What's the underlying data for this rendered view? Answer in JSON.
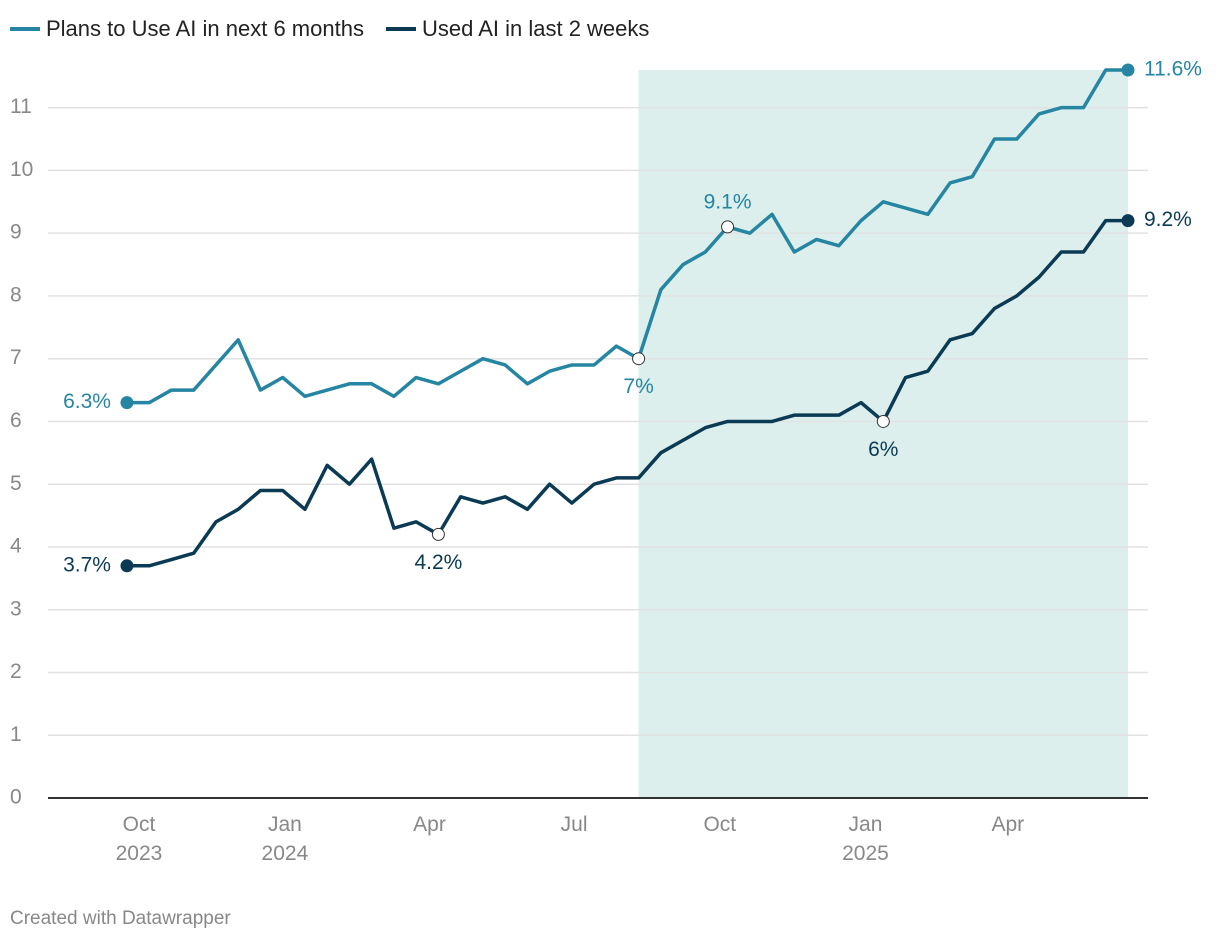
{
  "chart_data": {
    "type": "line",
    "x": [
      0,
      1,
      2,
      3,
      4,
      5,
      6,
      7,
      8,
      9,
      10,
      11,
      12,
      13,
      14,
      15,
      16,
      17,
      18,
      19,
      20,
      21,
      22,
      23,
      24,
      25,
      26,
      27,
      28,
      29,
      30,
      31,
      32,
      33,
      34,
      35,
      36,
      37,
      38,
      39,
      40,
      41,
      42,
      43,
      44,
      45
    ],
    "series": [
      {
        "name": "Plans to Use AI in next 6 months",
        "color": "#2585a2",
        "values": [
          6.3,
          6.3,
          6.5,
          6.5,
          6.9,
          7.3,
          6.5,
          6.7,
          6.4,
          6.5,
          6.6,
          6.6,
          6.4,
          6.7,
          6.6,
          6.8,
          7.0,
          6.9,
          6.6,
          6.8,
          6.9,
          6.9,
          7.2,
          7.0,
          8.1,
          8.5,
          8.7,
          9.1,
          9.0,
          9.3,
          8.7,
          8.9,
          8.8,
          9.2,
          9.5,
          9.4,
          9.3,
          9.8,
          9.9,
          10.5,
          10.5,
          10.9,
          11.0,
          11.0,
          11.6,
          11.6
        ],
        "value_labels": [
          "6.3%",
          null,
          null,
          null,
          null,
          null,
          null,
          null,
          null,
          null,
          null,
          null,
          null,
          null,
          null,
          null,
          null,
          null,
          null,
          null,
          null,
          null,
          null,
          "7%",
          null,
          null,
          null,
          "9.1%",
          null,
          null,
          null,
          null,
          null,
          null,
          null,
          null,
          null,
          null,
          null,
          null,
          null,
          null,
          null,
          null,
          null,
          "11.6%"
        ]
      },
      {
        "name": "Used AI in last 2 weeks",
        "color": "#0b3a55",
        "values": [
          3.7,
          3.7,
          3.8,
          3.9,
          4.4,
          4.6,
          4.9,
          4.9,
          4.6,
          5.3,
          5.0,
          5.4,
          4.3,
          4.4,
          4.2,
          4.8,
          4.7,
          4.8,
          4.6,
          5.0,
          4.7,
          5.0,
          5.1,
          5.1,
          5.5,
          5.7,
          5.9,
          6.0,
          6.0,
          6.0,
          6.1,
          6.1,
          6.1,
          6.3,
          6.0,
          6.7,
          6.8,
          7.3,
          7.4,
          7.8,
          8.0,
          8.3,
          8.7,
          8.7,
          9.2,
          9.2
        ],
        "value_labels": [
          "3.7%",
          null,
          null,
          null,
          null,
          null,
          null,
          null,
          null,
          null,
          null,
          null,
          null,
          null,
          "4.2%",
          null,
          null,
          null,
          null,
          null,
          null,
          null,
          null,
          null,
          null,
          null,
          null,
          null,
          null,
          null,
          null,
          null,
          null,
          null,
          "6%",
          null,
          null,
          null,
          null,
          null,
          null,
          null,
          null,
          null,
          null,
          "9.2%"
        ]
      }
    ],
    "xlim": [
      -3.55,
      45.9
    ],
    "xticks": [
      {
        "value": 0.54,
        "label": "Oct\n2023"
      },
      {
        "value": 7.1,
        "label": "Jan\n2024"
      },
      {
        "value": 13.6,
        "label": "Apr"
      },
      {
        "value": 20.1,
        "label": "Jul"
      },
      {
        "value": 26.65,
        "label": "Oct"
      },
      {
        "value": 33.2,
        "label": "Jan\n2025"
      },
      {
        "value": 39.6,
        "label": "Apr"
      }
    ],
    "ylim": [
      0,
      11.6
    ],
    "yticks": [
      0,
      1,
      2,
      3,
      4,
      5,
      6,
      7,
      8,
      9,
      10,
      11
    ],
    "grid": true,
    "highlight": {
      "x": [
        23,
        45
      ],
      "y": [
        0,
        11.6
      ],
      "color": "#dcefec"
    },
    "legend": "top-left",
    "footer": "Created with Datawrapper"
  }
}
